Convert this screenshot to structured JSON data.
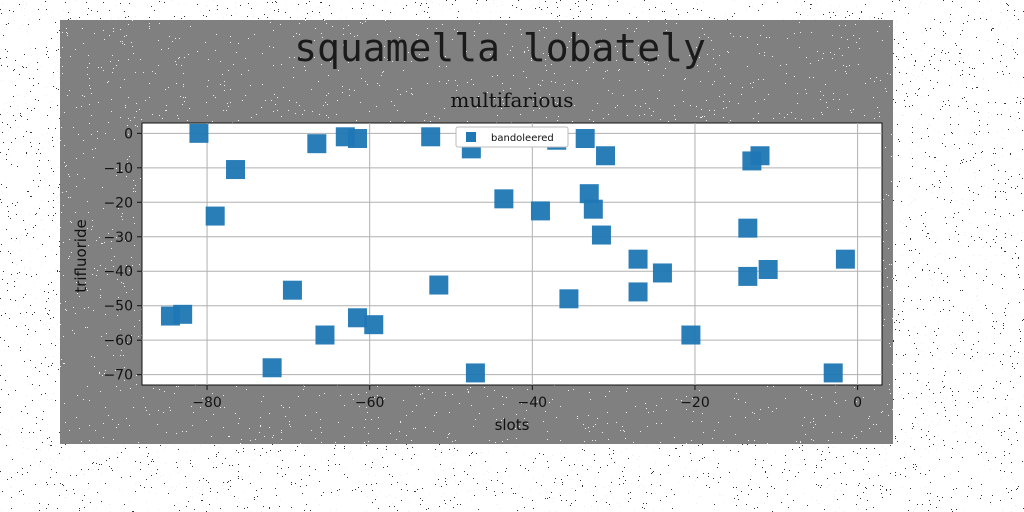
{
  "figure": {
    "suptitle": "squamella lobately",
    "background": "#808080"
  },
  "chart_data": {
    "type": "scatter",
    "title": "multifarious",
    "xlabel": "slots",
    "ylabel": "trifluoride",
    "xlim": [
      -88,
      3
    ],
    "ylim": [
      -73,
      3
    ],
    "xticks": [
      -80,
      -60,
      -40,
      -20,
      0
    ],
    "yticks": [
      0,
      -10,
      -20,
      -30,
      -40,
      -50,
      -60,
      -70
    ],
    "grid": true,
    "legend_position": "top-center",
    "marker": "square",
    "series": [
      {
        "name": "bandoleered",
        "color": "#1f77b4",
        "points": [
          [
            -81,
            0
          ],
          [
            -76.5,
            -10.5
          ],
          [
            -79,
            -24
          ],
          [
            -84.5,
            -53
          ],
          [
            -83,
            -52.5
          ],
          [
            -72,
            -68
          ],
          [
            -69.5,
            -45.5
          ],
          [
            -66.5,
            -3
          ],
          [
            -65.5,
            -58.5
          ],
          [
            -63,
            -1
          ],
          [
            -61.5,
            -1.5
          ],
          [
            -61.5,
            -53.5
          ],
          [
            -59.5,
            -55.5
          ],
          [
            -52.5,
            -1
          ],
          [
            -51.5,
            -44
          ],
          [
            -47.5,
            -4.5
          ],
          [
            -47,
            -69.5
          ],
          [
            -43.5,
            -19
          ],
          [
            -39,
            -22.5
          ],
          [
            -37,
            -2
          ],
          [
            -35.5,
            -48
          ],
          [
            -33.5,
            -1.5
          ],
          [
            -33,
            -17.5
          ],
          [
            -32.5,
            -22
          ],
          [
            -31.5,
            -29.5
          ],
          [
            -31,
            -6.5
          ],
          [
            -27,
            -36.5
          ],
          [
            -27,
            -46
          ],
          [
            -24,
            -40.5
          ],
          [
            -20.5,
            -58.5
          ],
          [
            -13.5,
            -27.5
          ],
          [
            -13.5,
            -41.5
          ],
          [
            -13,
            -8
          ],
          [
            -12,
            -6.5
          ],
          [
            -11,
            -39.5
          ],
          [
            -3,
            -69.5
          ],
          [
            -1.5,
            -36.5
          ]
        ]
      }
    ]
  }
}
